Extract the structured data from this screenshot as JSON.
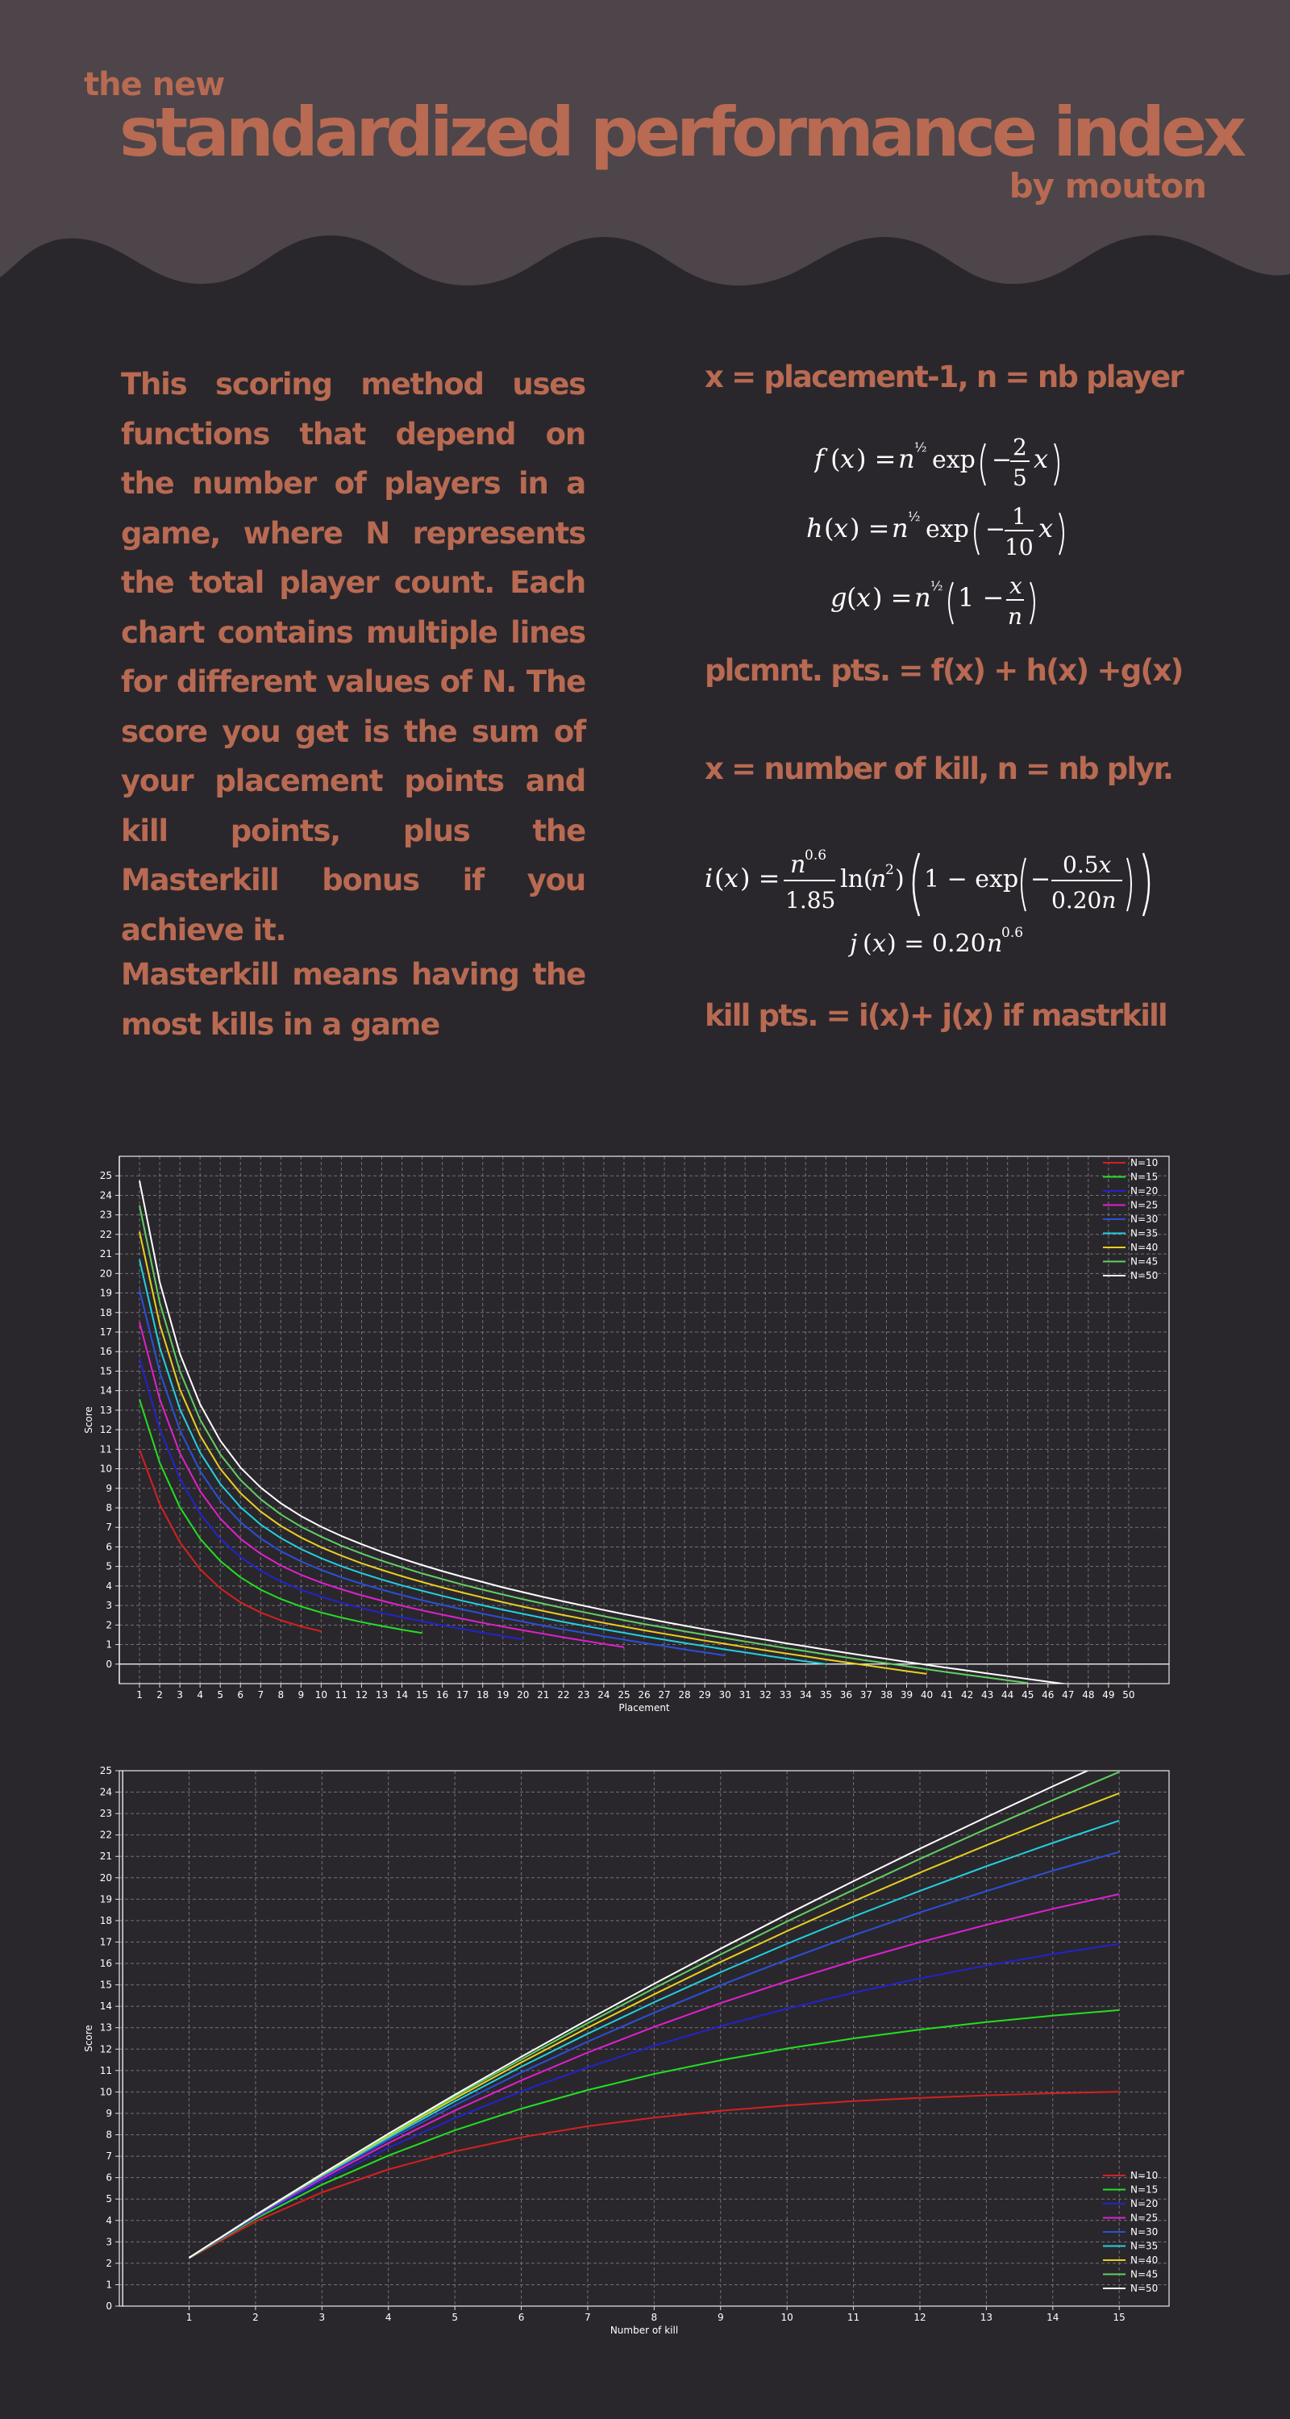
{
  "header": {
    "title_small": "the new",
    "title_main": "standardized performance index",
    "byline": "by mouton"
  },
  "description": {
    "main": "This scoring method uses functions that depend on the number of players in a game, where N represents the total player count. Each chart contains multiple lines for different values of N. The score you get is the sum of your placement points and kill points, plus the Masterkill bonus if you achieve it.",
    "masterkill": "Masterkill means having the most kills in a game"
  },
  "formulas": {
    "placement_vars": "x = placement-1, n = nb player",
    "f": "f (x) = n½ exp(−2/5 x)",
    "h": "h (x) = n½ exp(−1/10 x)",
    "g": "g (x) = n½ (1 − x/n)",
    "placement_points": "plcmnt. pts. = f(x) + h(x) +g(x)",
    "kill_vars": "x = number of kill, n = nb plyr.",
    "i": "i(x) = n^0.6/1.85 ln(n²)(1 − exp(−0.5x/0.20n))",
    "j": "j (x) = 0.20n^0.6",
    "kill_points": "kill pts. = i(x)+ j(x) if mastrkill"
  },
  "colors": {
    "background": "#2a272c",
    "header_band": "#4d4549",
    "accent_text": "#b86a52"
  },
  "chart_data": [
    {
      "type": "line",
      "title": "",
      "xlabel": "Placement",
      "ylabel": "Score",
      "xlim": [
        0,
        52
      ],
      "ylim": [
        -1,
        26
      ],
      "xticks": [
        1,
        2,
        3,
        4,
        5,
        6,
        7,
        8,
        9,
        10,
        11,
        12,
        13,
        14,
        15,
        16,
        17,
        18,
        19,
        20,
        21,
        22,
        23,
        24,
        25,
        26,
        27,
        28,
        29,
        30,
        31,
        32,
        33,
        34,
        35,
        36,
        37,
        38,
        39,
        40,
        41,
        42,
        43,
        44,
        45,
        46,
        47,
        48,
        49,
        50
      ],
      "yticks": [
        0,
        1,
        2,
        3,
        4,
        5,
        6,
        7,
        8,
        9,
        10,
        11,
        12,
        13,
        14,
        15,
        16,
        17,
        18,
        19,
        20,
        21,
        22,
        23,
        24,
        25
      ],
      "grid": true,
      "legend_position": "top-right",
      "series": [
        {
          "name": "N=10",
          "color": "#d62020",
          "x": [
            1,
            2,
            3,
            4,
            5,
            6,
            7,
            8,
            9,
            10
          ],
          "y": [
            10.99,
            8.19,
            6.24,
            4.86,
            3.88,
            3.16,
            2.64,
            2.24,
            1.93,
            1.68
          ]
        },
        {
          "name": "N=15",
          "color": "#22e022",
          "x": [
            1,
            2,
            3,
            4,
            5,
            6,
            7,
            8,
            9,
            10,
            11,
            12,
            13,
            14,
            15
          ],
          "y": [
            13.55,
            10.31,
            8.03,
            6.42,
            5.28,
            4.44,
            3.81,
            3.33,
            2.95,
            2.64,
            2.38,
            2.15,
            1.95,
            1.76,
            1.59
          ]
        },
        {
          "name": "N=20",
          "color": "#2222d0",
          "x": [
            1,
            2,
            3,
            4,
            5,
            6,
            7,
            8,
            9,
            10,
            11,
            12,
            13,
            14,
            15,
            16,
            17,
            18,
            19,
            20
          ],
          "y": [
            15.65,
            12.04,
            9.5,
            7.7,
            6.42,
            5.48,
            4.78,
            4.24,
            3.81,
            3.45,
            3.14,
            2.87,
            2.62,
            2.4,
            2.19,
            1.99,
            1.8,
            1.61,
            1.43,
            1.26
          ]
        },
        {
          "name": "N=25",
          "color": "#e020d0",
          "x": [
            1,
            2,
            3,
            4,
            5,
            6,
            7,
            8,
            9,
            10,
            11,
            12,
            13,
            14,
            15,
            16,
            17,
            18,
            19,
            20,
            21,
            22,
            23,
            24,
            25
          ],
          "y": [
            17.5,
            13.57,
            10.8,
            8.85,
            7.45,
            6.42,
            5.65,
            5.05,
            4.57,
            4.17,
            3.83,
            3.52,
            3.25,
            2.99,
            2.75,
            2.53,
            2.32,
            2.11,
            1.92,
            1.73,
            1.55,
            1.37,
            1.2,
            1.03,
            0.87
          ]
        },
        {
          "name": "N=30",
          "color": "#2a50d8",
          "x": [
            1,
            2,
            3,
            4,
            5,
            6,
            7,
            8,
            9,
            10,
            11,
            12,
            13,
            14,
            15,
            16,
            17,
            18,
            19,
            20,
            21,
            22,
            23,
            24,
            25,
            26,
            27,
            28,
            29,
            30
          ],
          "y": [
            19.17,
            14.96,
            11.98,
            9.88,
            8.37,
            7.27,
            6.43,
            5.78,
            5.26,
            4.82,
            4.44,
            4.11,
            3.81,
            3.53,
            3.27,
            3.03,
            2.8,
            2.58,
            2.37,
            2.17,
            1.97,
            1.78,
            1.6,
            1.42,
            1.25,
            1.08,
            0.92,
            0.75,
            0.6,
            0.44
          ]
        },
        {
          "name": "N=35",
          "color": "#22d0e0",
          "x": [
            1,
            2,
            3,
            4,
            5,
            6,
            7,
            8,
            9,
            10,
            11,
            12,
            13,
            14,
            15,
            16,
            17,
            18,
            19,
            20,
            21,
            22,
            23,
            24,
            25,
            26,
            27,
            28,
            29,
            30,
            31,
            32,
            33,
            34,
            35
          ],
          "y": [
            20.71,
            16.22,
            13.06,
            10.83,
            9.22,
            8.04,
            7.14,
            6.45,
            5.89,
            5.42,
            5.01,
            4.65,
            4.33,
            4.03,
            3.75,
            3.49,
            3.24,
            3.01,
            2.78,
            2.57,
            2.36,
            2.16,
            1.97,
            1.78,
            1.6,
            1.42,
            1.25,
            1.08,
            0.92,
            0.75,
            0.6,
            0.44,
            0.29,
            0.14,
            0.0
          ]
        },
        {
          "name": "N=40",
          "color": "#e8d020",
          "x": [
            1,
            2,
            3,
            4,
            5,
            6,
            7,
            8,
            9,
            10,
            11,
            12,
            13,
            14,
            15,
            16,
            17,
            18,
            19,
            20,
            21,
            22,
            23,
            24,
            25,
            26,
            27,
            28,
            29,
            30,
            31,
            32,
            33,
            34,
            35,
            36,
            37,
            38,
            39,
            40
          ],
          "y": [
            22.14,
            17.4,
            14.06,
            11.7,
            10.0,
            8.75,
            7.81,
            7.07,
            6.48,
            5.98,
            5.55,
            5.16,
            4.82,
            4.5,
            4.2,
            3.92,
            3.66,
            3.41,
            3.17,
            2.94,
            2.72,
            2.51,
            2.31,
            2.11,
            1.92,
            1.73,
            1.55,
            1.38,
            1.2,
            1.04,
            0.87,
            0.71,
            0.55,
            0.4,
            0.24,
            0.09,
            -0.06,
            -0.21,
            -0.36,
            -0.5
          ]
        },
        {
          "name": "N=45",
          "color": "#60d060",
          "x": [
            1,
            2,
            3,
            4,
            5,
            6,
            7,
            8,
            9,
            10,
            11,
            12,
            13,
            14,
            15,
            16,
            17,
            18,
            19,
            20,
            21,
            22,
            23,
            24,
            25,
            26,
            27,
            28,
            29,
            30,
            31,
            32,
            33,
            34,
            35,
            36,
            37,
            38,
            39,
            40,
            41,
            42,
            43,
            44,
            45
          ],
          "y": [
            23.48,
            18.51,
            15.0,
            12.52,
            10.74,
            9.43,
            8.44,
            7.66,
            7.04,
            6.52,
            6.06,
            5.66,
            5.29,
            4.96,
            4.64,
            4.35,
            4.07,
            3.81,
            3.56,
            3.32,
            3.09,
            2.87,
            2.66,
            2.45,
            2.25,
            2.05,
            1.87,
            1.68,
            1.5,
            1.33,
            1.16,
            0.99,
            0.82,
            0.66,
            0.5,
            0.34,
            0.19,
            0.04,
            -0.11,
            -0.26,
            -0.41,
            -0.55,
            -0.69,
            -0.83,
            -0.97
          ]
        },
        {
          "name": "N=50",
          "color": "#ffffff",
          "x": [
            1,
            2,
            3,
            4,
            5,
            6,
            7,
            8,
            9,
            10,
            11,
            12,
            13,
            14,
            15,
            16,
            17,
            18,
            19,
            20,
            21,
            22,
            23,
            24,
            25,
            26,
            27,
            28,
            29,
            30,
            31,
            32,
            33,
            34,
            35,
            36,
            37,
            38,
            39,
            40,
            41,
            42,
            43,
            44,
            45,
            46,
            47,
            48,
            49,
            50
          ],
          "y": [
            24.75,
            19.56,
            15.89,
            13.3,
            11.44,
            10.07,
            9.04,
            8.23,
            7.58,
            7.03,
            6.56,
            6.14,
            5.75,
            5.4,
            5.07,
            4.76,
            4.47,
            4.2,
            3.93,
            3.68,
            3.44,
            3.21,
            2.99,
            2.77,
            2.56,
            2.36,
            2.16,
            1.97,
            1.78,
            1.6,
            1.42,
            1.25,
            1.07,
            0.91,
            0.74,
            0.58,
            0.42,
            0.27,
            0.11,
            -0.04,
            -0.19,
            -0.33,
            -0.48,
            -0.62,
            -0.76,
            -0.9,
            -1.04,
            -1.18,
            -1.31,
            -1.45
          ]
        }
      ]
    },
    {
      "type": "line",
      "title": "",
      "xlabel": "Number of kill",
      "ylabel": "Score",
      "xlim": [
        -0.05,
        15.75
      ],
      "ylim": [
        0,
        25
      ],
      "xticks": [
        1,
        2,
        3,
        4,
        5,
        6,
        7,
        8,
        9,
        10,
        11,
        12,
        13,
        14,
        15
      ],
      "yticks": [
        0,
        1,
        2,
        3,
        4,
        5,
        6,
        7,
        8,
        9,
        10,
        11,
        12,
        13,
        14,
        15,
        16,
        17,
        18,
        19,
        20,
        21,
        22,
        23,
        24,
        25
      ],
      "grid": true,
      "legend_position": "bottom-right",
      "series": [
        {
          "name": "N=10",
          "color": "#d62020",
          "x": [
            1,
            2,
            3,
            4,
            5,
            6,
            7,
            8,
            9,
            10,
            11,
            12,
            13,
            14,
            15
          ],
          "y": [
            2.23,
            3.95,
            5.31,
            6.38,
            7.22,
            7.88,
            8.4,
            8.8,
            9.12,
            9.37,
            9.57,
            9.72,
            9.84,
            9.94,
            10.01
          ]
        },
        {
          "name": "N=15",
          "color": "#22e022",
          "x": [
            1,
            2,
            3,
            4,
            5,
            6,
            7,
            8,
            9,
            10,
            11,
            12,
            13,
            14,
            15
          ],
          "y": [
            2.24,
            4.08,
            5.67,
            7.03,
            8.21,
            9.22,
            10.09,
            10.84,
            11.48,
            12.03,
            12.5,
            12.91,
            13.26,
            13.56,
            13.82
          ]
        },
        {
          "name": "N=20",
          "color": "#2222d0",
          "x": [
            1,
            2,
            3,
            4,
            5,
            6,
            7,
            8,
            9,
            10,
            11,
            12,
            13,
            14,
            15
          ],
          "y": [
            2.25,
            4.14,
            5.85,
            7.39,
            8.78,
            10.03,
            11.15,
            12.16,
            13.07,
            13.89,
            14.63,
            15.3,
            15.9,
            16.44,
            16.92
          ]
        },
        {
          "name": "N=25",
          "color": "#e020d0",
          "x": [
            1,
            2,
            3,
            4,
            5,
            6,
            7,
            8,
            9,
            10,
            11,
            12,
            13,
            14,
            15
          ],
          "y": [
            2.25,
            4.18,
            5.96,
            7.61,
            9.13,
            10.54,
            11.84,
            13.04,
            14.15,
            15.17,
            16.12,
            16.99,
            17.8,
            18.55,
            19.24
          ]
        },
        {
          "name": "N=30",
          "color": "#2a50d8",
          "x": [
            1,
            2,
            3,
            4,
            5,
            6,
            7,
            8,
            9,
            10,
            11,
            12,
            13,
            14,
            15
          ],
          "y": [
            2.26,
            4.2,
            6.03,
            7.76,
            9.38,
            10.91,
            12.35,
            13.7,
            14.98,
            16.18,
            17.31,
            18.38,
            19.38,
            20.33,
            21.21
          ]
        },
        {
          "name": "N=35",
          "color": "#22d0e0",
          "x": [
            1,
            2,
            3,
            4,
            5,
            6,
            7,
            8,
            9,
            10,
            11,
            12,
            13,
            14,
            15
          ],
          "y": [
            2.26,
            4.22,
            6.08,
            7.86,
            9.56,
            11.18,
            12.72,
            14.19,
            15.59,
            16.92,
            18.19,
            19.39,
            20.54,
            21.63,
            22.67
          ]
        },
        {
          "name": "N=40",
          "color": "#e8d020",
          "x": [
            1,
            2,
            3,
            4,
            5,
            6,
            7,
            8,
            9,
            10,
            11,
            12,
            13,
            14,
            15
          ],
          "y": [
            2.26,
            4.23,
            6.12,
            7.94,
            9.69,
            11.38,
            13.0,
            14.56,
            16.07,
            17.51,
            18.9,
            20.24,
            21.52,
            22.76,
            23.95
          ]
        },
        {
          "name": "N=45",
          "color": "#60d060",
          "x": [
            1,
            2,
            3,
            4,
            5,
            6,
            7,
            8,
            9,
            10,
            11,
            12,
            13,
            14,
            15
          ],
          "y": [
            2.26,
            4.24,
            6.15,
            8.0,
            9.79,
            11.52,
            13.21,
            14.84,
            16.42,
            17.96,
            19.44,
            20.88,
            22.28,
            23.63,
            24.94
          ]
        },
        {
          "name": "N=50",
          "color": "#ffffff",
          "x": [
            1,
            2,
            3,
            4,
            5,
            6,
            7,
            8,
            9,
            10,
            11,
            12,
            13,
            14,
            15
          ],
          "y": [
            2.26,
            4.25,
            6.17,
            8.05,
            9.87,
            11.64,
            13.37,
            15.05,
            16.69,
            18.29,
            19.84,
            21.36,
            22.83,
            24.27,
            25.67
          ]
        }
      ]
    }
  ]
}
